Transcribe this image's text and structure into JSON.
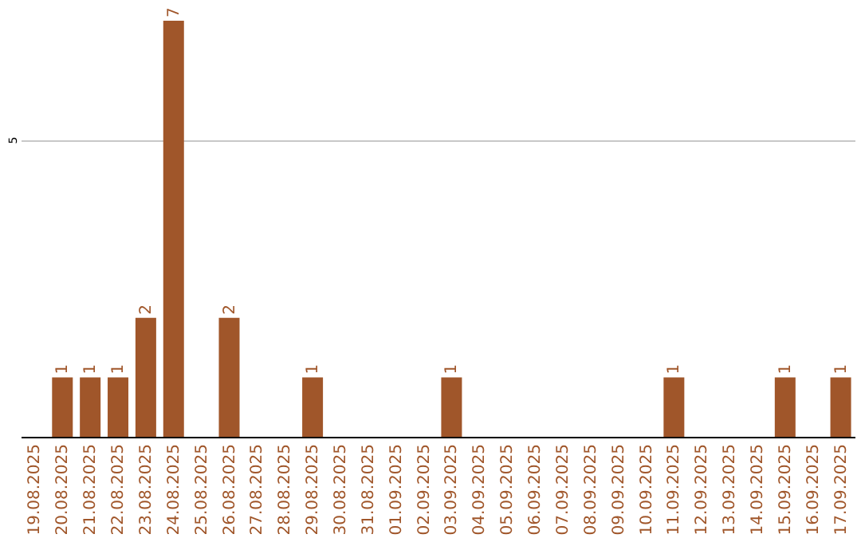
{
  "chart_data": {
    "type": "bar",
    "categories": [
      "19.08.2025",
      "20.08.2025",
      "21.08.2025",
      "22.08.2025",
      "23.08.2025",
      "24.08.2025",
      "25.08.2025",
      "26.08.2025",
      "27.08.2025",
      "28.08.2025",
      "29.08.2025",
      "30.08.2025",
      "31.08.2025",
      "01.09.2025",
      "02.09.2025",
      "03.09.2025",
      "04.09.2025",
      "05.09.2025",
      "06.09.2025",
      "07.09.2025",
      "08.09.2025",
      "09.09.2025",
      "10.09.2025",
      "11.09.2025",
      "12.09.2025",
      "13.09.2025",
      "14.09.2025",
      "15.09.2025",
      "16.09.2025",
      "17.09.2025"
    ],
    "values": [
      0,
      1,
      1,
      1,
      2,
      7,
      0,
      2,
      0,
      0,
      1,
      0,
      0,
      0,
      0,
      1,
      0,
      0,
      0,
      0,
      0,
      0,
      0,
      1,
      0,
      0,
      0,
      1,
      0,
      1
    ],
    "value_labels": [
      null,
      "1",
      "1",
      "1",
      "2",
      "7",
      null,
      "2",
      null,
      null,
      "1",
      null,
      null,
      null,
      null,
      "1",
      null,
      null,
      null,
      null,
      null,
      null,
      null,
      "1",
      null,
      null,
      null,
      "1",
      null,
      "1"
    ],
    "color": "#a0562a",
    "ylim": [
      0,
      7
    ],
    "yticks": [
      5
    ],
    "grid": "y"
  }
}
